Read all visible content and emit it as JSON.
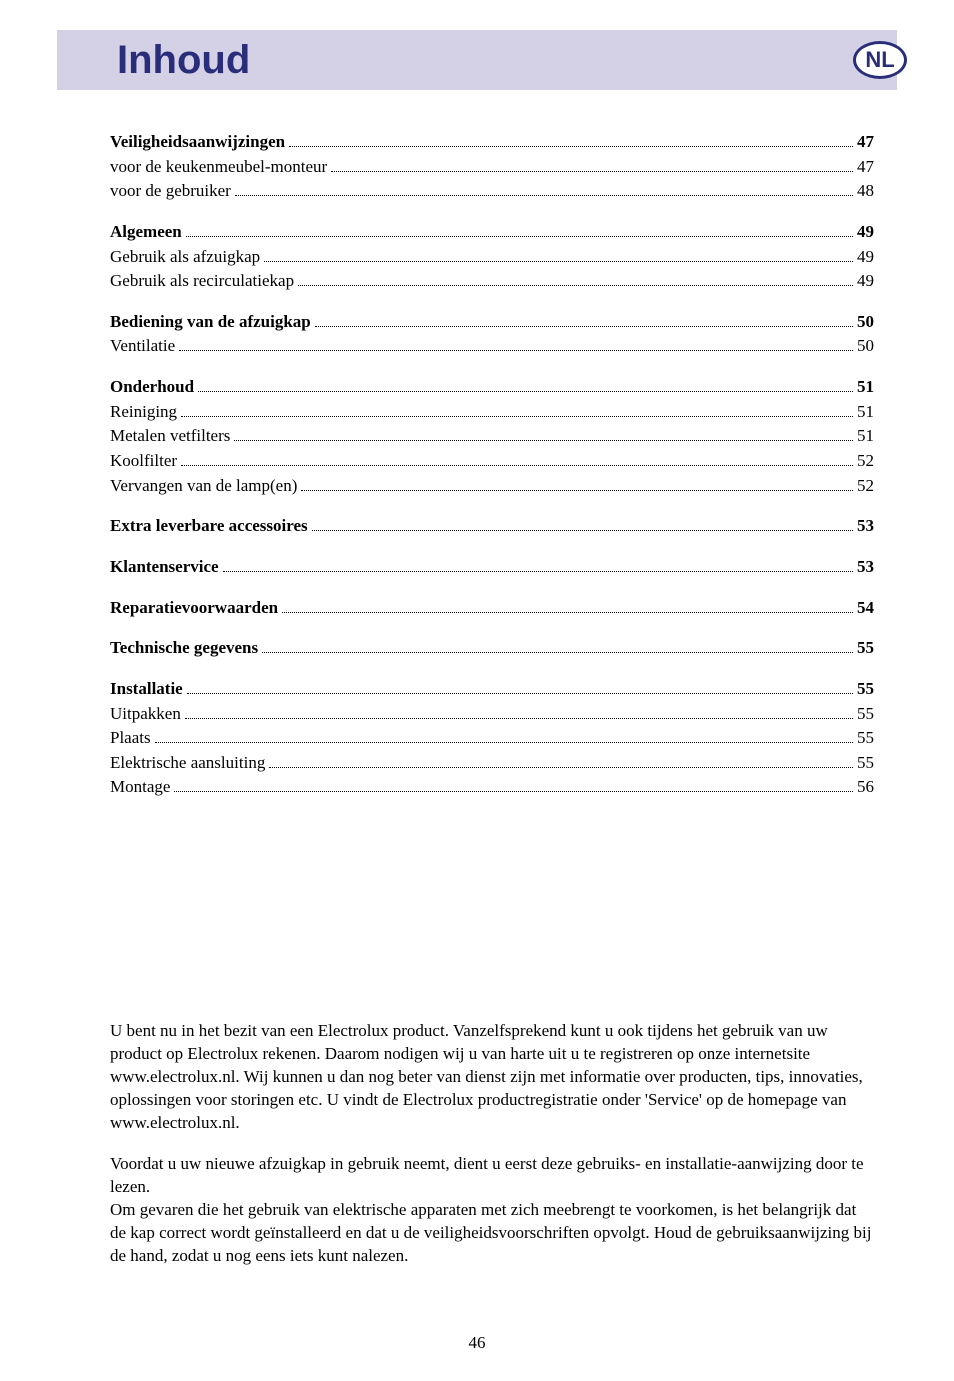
{
  "header": {
    "title": "Inhoud",
    "badge": "NL"
  },
  "toc": [
    {
      "heading": {
        "label": "Veiligheidsaanwijzingen",
        "page": "47"
      },
      "items": [
        {
          "label": "voor de keukenmeubel-monteur",
          "page": "47"
        },
        {
          "label": "voor de gebruiker",
          "page": "48"
        }
      ]
    },
    {
      "heading": {
        "label": "Algemeen",
        "page": "49"
      },
      "items": [
        {
          "label": "Gebruik als afzuigkap",
          "page": "49"
        },
        {
          "label": "Gebruik als recirculatiekap",
          "page": "49"
        }
      ]
    },
    {
      "heading": {
        "label": "Bediening van de afzuigkap",
        "page": "50"
      },
      "items": [
        {
          "label": "Ventilatie",
          "page": "50"
        }
      ]
    },
    {
      "heading": {
        "label": "Onderhoud",
        "page": "51"
      },
      "items": [
        {
          "label": "Reiniging",
          "page": "51"
        },
        {
          "label": "Metalen vetfilters",
          "page": "51"
        },
        {
          "label": "Koolfilter",
          "page": "52"
        },
        {
          "label": "Vervangen van de lamp(en)",
          "page": "52"
        }
      ]
    },
    {
      "heading": {
        "label": "Extra leverbare accessoires",
        "page": "53"
      },
      "items": []
    },
    {
      "heading": {
        "label": "Klantenservice",
        "page": "53"
      },
      "items": []
    },
    {
      "heading": {
        "label": "Reparatievoorwaarden",
        "page": "54"
      },
      "items": []
    },
    {
      "heading": {
        "label": "Technische gegevens",
        "page": "55"
      },
      "items": []
    },
    {
      "heading": {
        "label": "Installatie",
        "page": "55"
      },
      "items": [
        {
          "label": "Uitpakken",
          "page": "55"
        },
        {
          "label": "Plaats",
          "page": "55"
        },
        {
          "label": "Elektrische aansluiting",
          "page": "55"
        },
        {
          "label": "Montage",
          "page": "56"
        }
      ]
    }
  ],
  "paragraphs": {
    "p1": "U bent nu in het bezit van een Electrolux product. Vanzelfsprekend kunt u ook tijdens het gebruik van uw product op Electrolux rekenen. Daarom nodigen wij u van harte uit u te registreren op onze internetsite www.electrolux.nl. Wij kunnen u dan nog beter van dienst zijn met informatie over producten, tips, innovaties, oplossingen voor storingen etc. U vindt de Electrolux productregistratie onder 'Service' op de homepage van www.electrolux.nl.",
    "p2": "Voordat u uw nieuwe afzuigkap in gebruik neemt, dient u eerst deze gebruiks- en installatie-aanwijzing door te lezen.",
    "p3": "Om gevaren die het gebruik van elektrische apparaten met zich meebrengt te voorkomen, is het belangrijk dat de kap correct wordt geïnstalleerd en dat u de veiligheidsvoorschriften opvolgt. Houd de gebruiksaanwijzing bij de hand, zodat u nog eens iets kunt nalezen."
  },
  "page_number": "46"
}
